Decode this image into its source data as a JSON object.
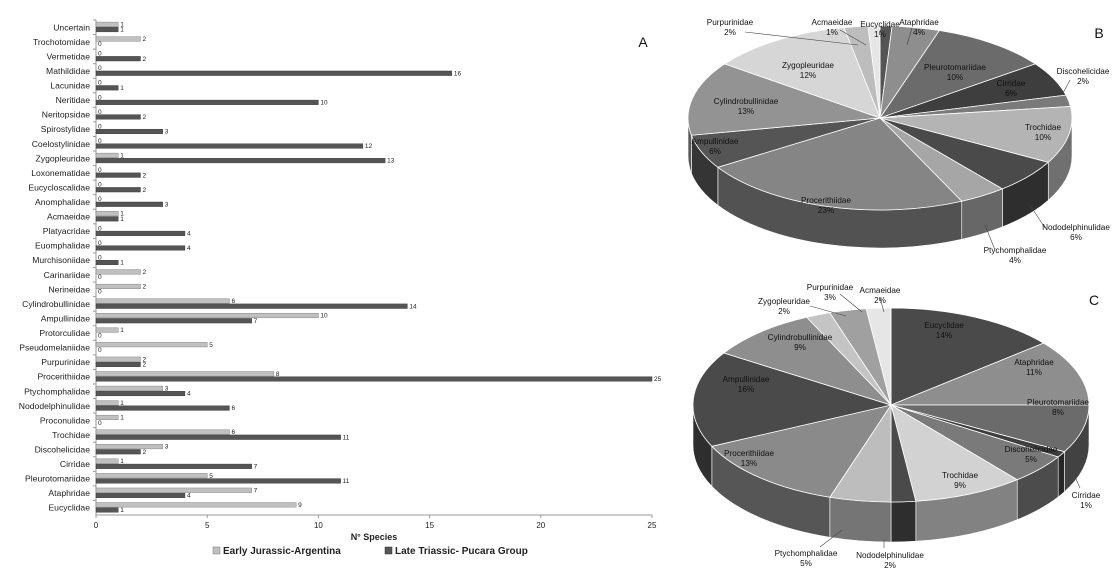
{
  "chart_data": [
    {
      "type": "bar",
      "orientation": "horizontal",
      "panel_label": "A",
      "xlabel": "N° Species",
      "xlim": [
        0,
        25
      ],
      "xticks": [
        "0",
        "5",
        "10",
        "15",
        "20",
        "25"
      ],
      "legend_position": "bottom",
      "categories": [
        "Uncertain",
        "Trochotomidae",
        "Vermetidae",
        "Mathildidae",
        "Lacunidae",
        "Neritidae",
        "Neritopsidae",
        "Spirostylidae",
        "Coelostylinidae",
        "Zygopleuridae",
        "Loxonematidae",
        "Eucycloscalidae",
        "Anomphalidae",
        "Acmaeidae",
        "Platyacridae",
        "Euomphalidae",
        "Murchisoniidae",
        "Carinariidae",
        "Nerineidae",
        "Cylindrobullinidae",
        "Ampullinidae",
        "Protorculidae",
        "Pseudomelaniidae",
        "Purpurinidae",
        "Procerithiidae",
        "Ptychomphalidae",
        "Nododelphinulidae",
        "Proconulidae",
        "Trochidae",
        "Discohelicidae",
        "Cirridae",
        "Pleurotomariidae",
        "Ataphridae",
        "Eucyclidae"
      ],
      "series": [
        {
          "name": "Early Jurassic-Argentina",
          "color": "#c0c0c0",
          "values": [
            1,
            2,
            0,
            0,
            0,
            0,
            0,
            0,
            0,
            1,
            0,
            0,
            0,
            1,
            0,
            0,
            0,
            2,
            2,
            6,
            10,
            1,
            5,
            2,
            8,
            3,
            1,
            1,
            6,
            3,
            1,
            5,
            7,
            9
          ]
        },
        {
          "name": "Late Triassic- Pucara Group",
          "color": "#555555",
          "values": [
            1,
            0,
            2,
            16,
            1,
            10,
            2,
            3,
            12,
            13,
            2,
            2,
            3,
            1,
            4,
            4,
            1,
            0,
            0,
            14,
            7,
            0,
            0,
            2,
            25,
            4,
            6,
            0,
            11,
            2,
            7,
            11,
            4,
            1
          ]
        }
      ]
    },
    {
      "type": "pie",
      "panel_label": "B",
      "slices": [
        {
          "label": "Eucyclidae",
          "value": 1,
          "pct": "1%",
          "color": "#555555"
        },
        {
          "label": "Ataphridae",
          "value": 4,
          "pct": "4%",
          "color": "#8e8e8e"
        },
        {
          "label": "Pleurotomariidae",
          "value": 10,
          "pct": "10%",
          "color": "#6b6b6b"
        },
        {
          "label": "Cirridae",
          "value": 6,
          "pct": "6%",
          "color": "#3e3e3e"
        },
        {
          "label": "Discohelicidae",
          "value": 2,
          "pct": "2%",
          "color": "#7a7a7a"
        },
        {
          "label": "Trochidae",
          "value": 10,
          "pct": "10%",
          "color": "#b4b4b4"
        },
        {
          "label": "Nododelphinulidae",
          "value": 6,
          "pct": "6%",
          "color": "#4a4a4a"
        },
        {
          "label": "Ptychomphalidae",
          "value": 4,
          "pct": "4%",
          "color": "#a6a6a6"
        },
        {
          "label": "Procerithiidae",
          "value": 23,
          "pct": "23%",
          "color": "#858585"
        },
        {
          "label": "Ampullinidae",
          "value": 6,
          "pct": "6%",
          "color": "#555555"
        },
        {
          "label": "Cylindrobullinidae",
          "value": 13,
          "pct": "13%",
          "color": "#939393"
        },
        {
          "label": "Zygopleuridae",
          "value": 12,
          "pct": "12%",
          "color": "#d6d6d6"
        },
        {
          "label": "Purpurinidae",
          "value": 2,
          "pct": "2%",
          "color": "#bdbdbd"
        },
        {
          "label": "Acmaeidae",
          "value": 1,
          "pct": "1%",
          "color": "#e6e6e6"
        }
      ]
    },
    {
      "type": "pie",
      "panel_label": "C",
      "slices": [
        {
          "label": "Eucyclidae",
          "value": 14,
          "pct": "14%",
          "color": "#4a4a4a"
        },
        {
          "label": "Ataphridae",
          "value": 11,
          "pct": "11%",
          "color": "#8e8e8e"
        },
        {
          "label": "Pleurotomariidae",
          "value": 8,
          "pct": "8%",
          "color": "#6b6b6b"
        },
        {
          "label": "Cirridae",
          "value": 1,
          "pct": "1%",
          "color": "#3e3e3e"
        },
        {
          "label": "Discohelicidae",
          "value": 5,
          "pct": "5%",
          "color": "#7a7a7a"
        },
        {
          "label": "Trochidae",
          "value": 9,
          "pct": "9%",
          "color": "#d2d2d2"
        },
        {
          "label": "Nododelphinulidae",
          "value": 2,
          "pct": "2%",
          "color": "#4a4a4a"
        },
        {
          "label": "Ptychomphalidae",
          "value": 5,
          "pct": "5%",
          "color": "#bdbdbd"
        },
        {
          "label": "Procerithiidae",
          "value": 13,
          "pct": "13%",
          "color": "#8a8a8a"
        },
        {
          "label": "Ampullinidae",
          "value": 16,
          "pct": "16%",
          "color": "#4a4a4a"
        },
        {
          "label": "Cylindrobullinidae",
          "value": 9,
          "pct": "9%",
          "color": "#8e8e8e"
        },
        {
          "label": "Zygopleuridae",
          "value": 2,
          "pct": "2%",
          "color": "#c4c4c4"
        },
        {
          "label": "Purpurinidae",
          "value": 3,
          "pct": "3%",
          "color": "#a0a0a0"
        },
        {
          "label": "Acmaeidae",
          "value": 2,
          "pct": "2%",
          "color": "#e6e6e6"
        }
      ]
    }
  ]
}
